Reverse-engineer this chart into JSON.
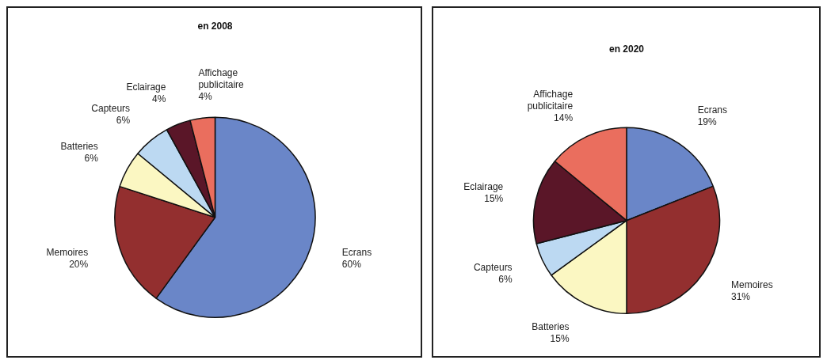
{
  "chart_data": [
    {
      "type": "pie",
      "title": "en 2008",
      "categories": [
        "Ecrans",
        "Memoires",
        "Batteries",
        "Capteurs",
        "Eclairage",
        "Affichage publicitaire"
      ],
      "values": [
        60,
        20,
        6,
        6,
        4,
        4
      ],
      "value_labels": [
        "60%",
        "20%",
        "6%",
        "6%",
        "4%",
        "4%"
      ],
      "colors": [
        "#6a86c8",
        "#932f2f",
        "#fbf7c2",
        "#bcd9f2",
        "#5a1628",
        "#ea6e5e"
      ],
      "legend": false
    },
    {
      "type": "pie",
      "title": "en 2020",
      "categories": [
        "Ecrans",
        "Memoires",
        "Batteries",
        "Capteurs",
        "Eclairage",
        "Affichage publicitaire"
      ],
      "values": [
        19,
        31,
        15,
        6,
        15,
        14
      ],
      "value_labels": [
        "19%",
        "31%",
        "15%",
        "6%",
        "15%",
        "14%"
      ],
      "colors": [
        "#6a86c8",
        "#932f2f",
        "#fbf7c2",
        "#bcd9f2",
        "#5a1628",
        "#ea6e5e"
      ],
      "legend": false
    }
  ]
}
